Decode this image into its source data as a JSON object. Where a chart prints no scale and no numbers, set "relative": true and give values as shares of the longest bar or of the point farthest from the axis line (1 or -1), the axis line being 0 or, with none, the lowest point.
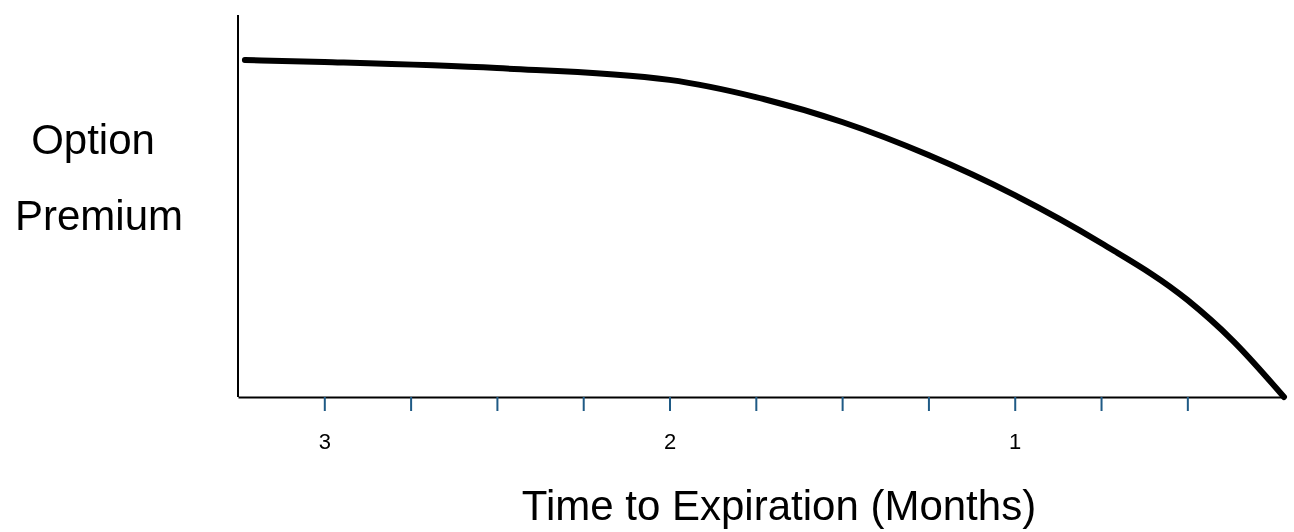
{
  "chart_data": {
    "type": "line",
    "relative": true,
    "xlabel": "Time to Expiration (Months)",
    "ylabel": "Option Premium",
    "tick_labels": "x",
    "xlim": [
      3.25,
      0.22
    ],
    "xticks": [
      3,
      {
        "value": 2.75,
        "label": null
      },
      {
        "value": 2.5,
        "label": null
      },
      {
        "value": 2.25,
        "label": null
      },
      2,
      {
        "value": 1.75,
        "label": null
      },
      {
        "value": 1.5,
        "label": null
      },
      {
        "value": 1.25,
        "label": null
      },
      1,
      {
        "value": 0.75,
        "label": null
      },
      {
        "value": 0.5,
        "label": null
      }
    ],
    "x": [
      3.23,
      3,
      2.5,
      2,
      1.75,
      1.5,
      1.25,
      1,
      0.75,
      0.5,
      0.37,
      0.22
    ],
    "series": [
      {
        "color": "#000000",
        "values": [
          1,
          0.994,
          0.976,
          0.941,
          0.89,
          0.816,
          0.718,
          0.599,
          0.457,
          0.288,
          0.169,
          0
        ]
      }
    ]
  }
}
